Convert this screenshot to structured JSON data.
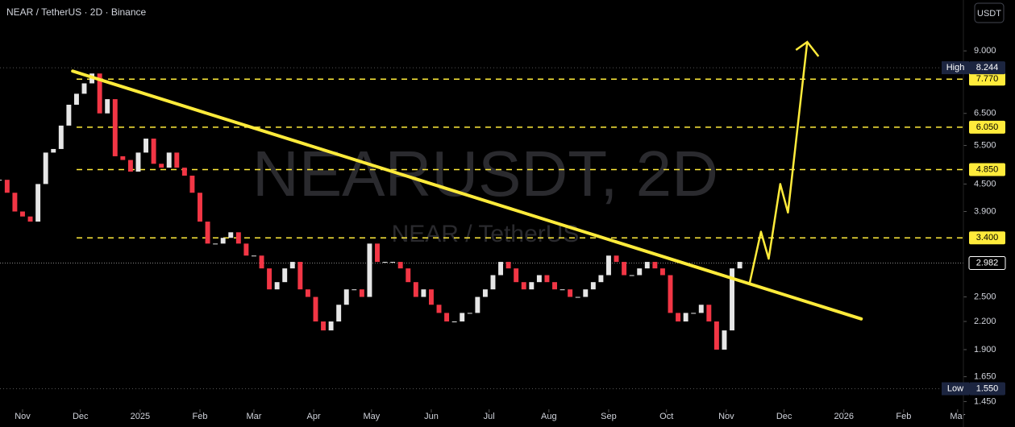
{
  "chart_data": {
    "type": "candlestick",
    "title": "NEAR / TetherUS · 2D · Binance",
    "currency": "USDT",
    "watermark": "NEARUSDT, 2D",
    "watermark_subtitle": "NEAR / TetherUS",
    "log_scale": true,
    "up_color": "#e6e6e6",
    "down_color": "#f23645",
    "level_color": "#ffeb3b",
    "x": [
      -12,
      -8,
      -4,
      0,
      4,
      8,
      12,
      16,
      20,
      24,
      28,
      32,
      36,
      40,
      44,
      48,
      52,
      56,
      60,
      64,
      68,
      72,
      76,
      80,
      84,
      88,
      92,
      96,
      100,
      104,
      108,
      112,
      116,
      120,
      124,
      128,
      132,
      136,
      140,
      144,
      148,
      152,
      156,
      160,
      164,
      168,
      172,
      176,
      180,
      184,
      188,
      192,
      196,
      200,
      204,
      208,
      212,
      216,
      220,
      224,
      228,
      232,
      236,
      240,
      244,
      248,
      252,
      256,
      260,
      264,
      268,
      272,
      276,
      280,
      284,
      288,
      292,
      296,
      300,
      304,
      308,
      312,
      316,
      320,
      324,
      328,
      332,
      336,
      340,
      344,
      348,
      352,
      356,
      360,
      364,
      368,
      372
    ],
    "close": [
      4.6,
      4.3,
      3.9,
      3.8,
      3.7,
      4.5,
      5.3,
      5.4,
      6.1,
      6.8,
      7.2,
      7.6,
      8.0,
      6.5,
      7.0,
      5.2,
      5.1,
      4.8,
      5.3,
      5.7,
      5.0,
      4.9,
      5.3,
      4.9,
      4.7,
      4.3,
      3.7,
      3.3,
      3.3,
      3.4,
      3.5,
      3.3,
      3.1,
      3.1,
      2.9,
      2.6,
      2.7,
      2.9,
      3.0,
      2.6,
      2.5,
      2.2,
      2.1,
      2.2,
      2.4,
      2.6,
      2.6,
      2.5,
      3.3,
      3.0,
      3.0,
      3.0,
      2.9,
      2.7,
      2.5,
      2.6,
      2.4,
      2.3,
      2.2,
      2.2,
      2.3,
      2.3,
      2.5,
      2.6,
      2.8,
      3.0,
      2.9,
      2.7,
      2.6,
      2.7,
      2.8,
      2.7,
      2.6,
      2.6,
      2.5,
      2.5,
      2.6,
      2.7,
      2.8,
      3.1,
      3.0,
      2.8,
      2.8,
      2.9,
      3.0,
      2.9,
      2.8,
      2.3,
      2.2,
      2.3,
      2.3,
      2.4,
      2.2,
      1.9,
      2.1,
      2.9,
      3.0
    ],
    "xlim": [
      -11.7,
      488
    ],
    "xticks": [
      {
        "value": 0,
        "label": "Nov"
      },
      {
        "value": 30,
        "label": "Dec"
      },
      {
        "value": 61,
        "label": "2025"
      },
      {
        "value": 92,
        "label": "Feb"
      },
      {
        "value": 120,
        "label": "Mar"
      },
      {
        "value": 151,
        "label": "Apr"
      },
      {
        "value": 181,
        "label": "May"
      },
      {
        "value": 212,
        "label": "Jun"
      },
      {
        "value": 242,
        "label": "Jul"
      },
      {
        "value": 273,
        "label": "Aug"
      },
      {
        "value": 304,
        "label": "Sep"
      },
      {
        "value": 334,
        "label": "Oct"
      },
      {
        "value": 365,
        "label": "Nov"
      },
      {
        "value": 395,
        "label": "Dec"
      },
      {
        "value": 426,
        "label": "2026"
      },
      {
        "value": 457,
        "label": "Feb"
      },
      {
        "value": 485,
        "label": "Mar"
      }
    ],
    "ylim": [
      1.27,
      11.73
    ],
    "yticks": [
      {
        "value": 9,
        "label": "9.000"
      },
      {
        "value": 6.5,
        "label": "6.500"
      },
      {
        "value": 5.5,
        "label": "5.500"
      },
      {
        "value": 4.5,
        "label": "4.500"
      },
      {
        "value": 3.9,
        "label": "3.900"
      },
      {
        "value": 2.5,
        "label": "2.500"
      },
      {
        "value": 2.2,
        "label": "2.200"
      },
      {
        "value": 1.9,
        "label": "1.900"
      },
      {
        "value": 1.65,
        "label": "1.650"
      },
      {
        "value": 1.45,
        "label": "1.450"
      }
    ],
    "levels": [
      {
        "value": 7.77,
        "label": "7.770"
      },
      {
        "value": 6.05,
        "label": "6.050"
      },
      {
        "value": 4.85,
        "label": "4.850"
      },
      {
        "value": 3.4,
        "label": "3.400"
      }
    ],
    "high": {
      "name": "High",
      "value": 8.244,
      "label": "8.244"
    },
    "low": {
      "name": "Low",
      "value": 1.55,
      "label": "1.550"
    },
    "last": {
      "value": 2.982,
      "label": "2.982"
    },
    "trendline": {
      "x": [
        26,
        435
      ],
      "y": [
        8.1,
        2.23
      ]
    },
    "projection": {
      "x": [
        377,
        383,
        387,
        393,
        397,
        407
      ],
      "y": [
        2.67,
        3.51,
        3.05,
        4.5,
        3.88,
        9.43
      ]
    }
  }
}
